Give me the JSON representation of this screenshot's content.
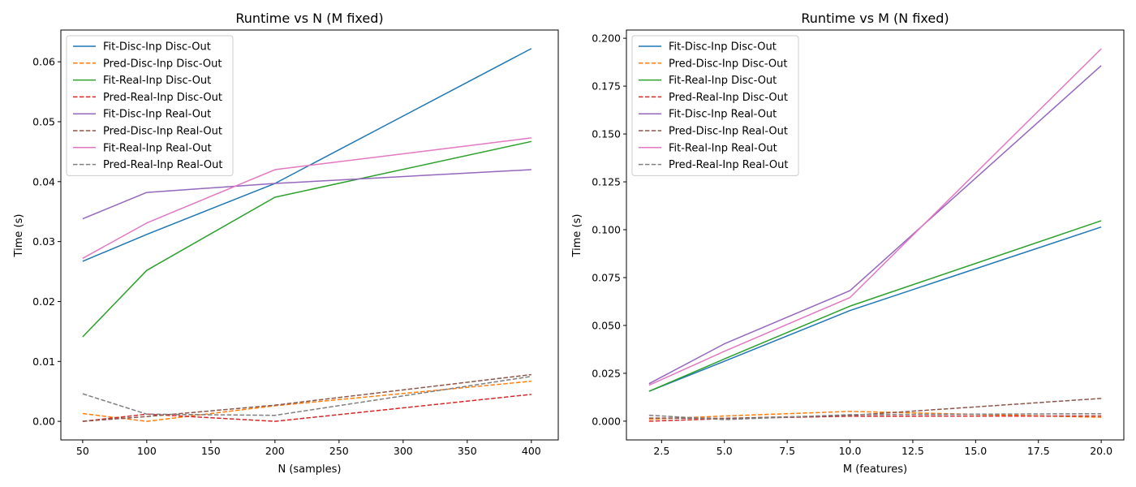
{
  "chart_data": [
    {
      "type": "line",
      "title": "Runtime vs N (M fixed)",
      "xlabel": "N (samples)",
      "ylabel": "Time (s)",
      "xlim": [
        33,
        421
      ],
      "ylim": [
        -0.0031,
        0.0653
      ],
      "xticks": [
        50,
        100,
        150,
        200,
        250,
        300,
        350,
        400
      ],
      "xtick_labels": [
        "50",
        "100",
        "150",
        "200",
        "250",
        "300",
        "350",
        "400"
      ],
      "yticks": [
        0.0,
        0.01,
        0.02,
        0.03,
        0.04,
        0.05,
        0.06
      ],
      "ytick_labels": [
        "0.00",
        "0.01",
        "0.02",
        "0.03",
        "0.04",
        "0.05",
        "0.06"
      ],
      "grid": false,
      "legend_position": "top-left",
      "x": [
        50,
        100,
        200,
        400
      ],
      "series": [
        {
          "name": "Fit-Disc-Inp Disc-Out",
          "color": "#1f77b4",
          "dashed": false,
          "values": [
            0.0267,
            0.0312,
            0.0397,
            0.0622
          ]
        },
        {
          "name": "Pred-Disc-Inp Disc-Out",
          "color": "#ff7f0e",
          "dashed": true,
          "values": [
            0.0013,
            0.0,
            0.0026,
            0.0067
          ]
        },
        {
          "name": "Fit-Real-Inp Disc-Out",
          "color": "#2ca02c",
          "dashed": false,
          "values": [
            0.0141,
            0.0252,
            0.0374,
            0.0467
          ]
        },
        {
          "name": "Pred-Real-Inp Disc-Out",
          "color": "#d62728",
          "dashed": true,
          "values": [
            0.0,
            0.0012,
            0.0,
            0.0045
          ]
        },
        {
          "name": "Fit-Disc-Inp Real-Out",
          "color": "#9467bd",
          "dashed": false,
          "values": [
            0.0338,
            0.0382,
            0.0397,
            0.042
          ]
        },
        {
          "name": "Pred-Disc-Inp Real-Out",
          "color": "#8c564b",
          "dashed": true,
          "values": [
            0.0,
            0.0008,
            0.0027,
            0.0078
          ]
        },
        {
          "name": "Fit-Real-Inp Real-Out",
          "color": "#e377c2",
          "dashed": false,
          "values": [
            0.0272,
            0.0331,
            0.042,
            0.0473
          ]
        },
        {
          "name": "Pred-Real-Inp Real-Out",
          "color": "#7f7f7f",
          "dashed": true,
          "values": [
            0.0046,
            0.0012,
            0.001,
            0.0075
          ]
        }
      ]
    },
    {
      "type": "line",
      "title": "Runtime vs M (N fixed)",
      "xlabel": "M (features)",
      "ylabel": "Time (s)",
      "xlim": [
        1.1,
        20.9
      ],
      "ylim": [
        -0.0098,
        0.2043
      ],
      "xticks": [
        2.5,
        5.0,
        7.5,
        10.0,
        12.5,
        15.0,
        17.5,
        20.0
      ],
      "xtick_labels": [
        "2.5",
        "5.0",
        "7.5",
        "10.0",
        "12.5",
        "15.0",
        "17.5",
        "20.0"
      ],
      "yticks": [
        0.0,
        0.025,
        0.05,
        0.075,
        0.1,
        0.125,
        0.15,
        0.175,
        0.2
      ],
      "ytick_labels": [
        "0.000",
        "0.025",
        "0.050",
        "0.075",
        "0.100",
        "0.125",
        "0.150",
        "0.175",
        "0.200"
      ],
      "grid": false,
      "legend_position": "top-left",
      "x": [
        2,
        5,
        10,
        20
      ],
      "series": [
        {
          "name": "Fit-Disc-Inp Disc-Out",
          "color": "#1f77b4",
          "dashed": false,
          "values": [
            0.0156,
            0.0313,
            0.0578,
            0.1014
          ]
        },
        {
          "name": "Pred-Disc-Inp Disc-Out",
          "color": "#ff7f0e",
          "dashed": true,
          "values": [
            0.001,
            0.0027,
            0.0051,
            0.002
          ]
        },
        {
          "name": "Fit-Real-Inp Disc-Out",
          "color": "#2ca02c",
          "dashed": false,
          "values": [
            0.0156,
            0.0325,
            0.0601,
            0.1047
          ]
        },
        {
          "name": "Pred-Real-Inp Disc-Out",
          "color": "#d62728",
          "dashed": true,
          "values": [
            0.0,
            0.0013,
            0.0026,
            0.0027
          ]
        },
        {
          "name": "Fit-Disc-Inp Real-Out",
          "color": "#9467bd",
          "dashed": false,
          "values": [
            0.0196,
            0.0404,
            0.0682,
            0.1857
          ]
        },
        {
          "name": "Pred-Disc-Inp Real-Out",
          "color": "#8c564b",
          "dashed": true,
          "values": [
            0.0016,
            0.0015,
            0.003,
            0.0119
          ]
        },
        {
          "name": "Fit-Real-Inp Real-Out",
          "color": "#e377c2",
          "dashed": false,
          "values": [
            0.0188,
            0.0365,
            0.0646,
            0.1945
          ]
        },
        {
          "name": "Pred-Real-Inp Real-Out",
          "color": "#7f7f7f",
          "dashed": true,
          "values": [
            0.0031,
            0.0008,
            0.0034,
            0.0039
          ]
        }
      ]
    }
  ]
}
